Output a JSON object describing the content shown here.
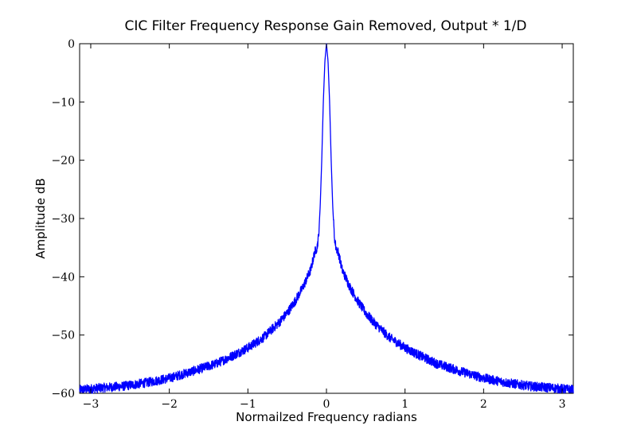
{
  "chart_data": {
    "type": "line",
    "title": "CIC Filter Frequency Response Gain Removed, Output * 1/D",
    "xlabel": "Normailzed Frequency radians",
    "ylabel": "Amplitude dB",
    "xlim": [
      -3.1416,
      3.1416
    ],
    "ylim": [
      -60,
      0
    ],
    "x_ticks": [
      -3,
      -2,
      -1,
      0,
      1,
      2,
      3
    ],
    "y_ticks": [
      0,
      -10,
      -20,
      -30,
      -40,
      -50,
      -60
    ],
    "x_tick_labels": [
      "−3",
      "−2",
      "−1",
      "0",
      "1",
      "2",
      "3"
    ],
    "y_tick_labels": [
      "0",
      "−10",
      "−20",
      "−30",
      "−40",
      "−50",
      "−60"
    ],
    "grid": false,
    "legend": "none",
    "series": [
      {
        "color": "#0000ff",
        "points": [
          [
            -3.14,
            -59.4
          ],
          [
            -2.9,
            -59.1
          ],
          [
            -2.6,
            -58.8
          ],
          [
            -2.3,
            -58.2
          ],
          [
            -2.0,
            -57.4
          ],
          [
            -1.7,
            -56.2
          ],
          [
            -1.4,
            -54.9
          ],
          [
            -1.2,
            -53.6
          ],
          [
            -1.0,
            -52.2
          ],
          [
            -0.8,
            -50.4
          ],
          [
            -0.6,
            -47.8
          ],
          [
            -0.5,
            -46.2
          ],
          [
            -0.4,
            -44.2
          ],
          [
            -0.3,
            -41.8
          ],
          [
            -0.2,
            -38.8
          ],
          [
            -0.15,
            -35.8
          ],
          [
            -0.12,
            -35.0
          ],
          [
            -0.1,
            -33.0
          ],
          [
            -0.08,
            -28.0
          ],
          [
            -0.06,
            -20.0
          ],
          [
            -0.04,
            -10.0
          ],
          [
            -0.02,
            -3.0
          ],
          [
            0.0,
            0.0
          ],
          [
            0.02,
            -3.0
          ],
          [
            0.04,
            -10.0
          ],
          [
            0.06,
            -20.0
          ],
          [
            0.08,
            -28.0
          ],
          [
            0.1,
            -33.0
          ],
          [
            0.12,
            -35.0
          ],
          [
            0.15,
            -35.8
          ],
          [
            0.2,
            -38.8
          ],
          [
            0.3,
            -41.8
          ],
          [
            0.4,
            -44.2
          ],
          [
            0.5,
            -46.2
          ],
          [
            0.6,
            -47.8
          ],
          [
            0.8,
            -50.4
          ],
          [
            1.0,
            -52.2
          ],
          [
            1.2,
            -53.6
          ],
          [
            1.4,
            -54.9
          ],
          [
            1.7,
            -56.2
          ],
          [
            2.0,
            -57.4
          ],
          [
            2.3,
            -58.2
          ],
          [
            2.6,
            -58.8
          ],
          [
            2.9,
            -59.1
          ],
          [
            3.14,
            -59.4
          ]
        ],
        "noise_db": 0.8
      }
    ]
  },
  "colors": {
    "line": "#0000ff",
    "axes": "#000000",
    "background": "#ffffff"
  }
}
